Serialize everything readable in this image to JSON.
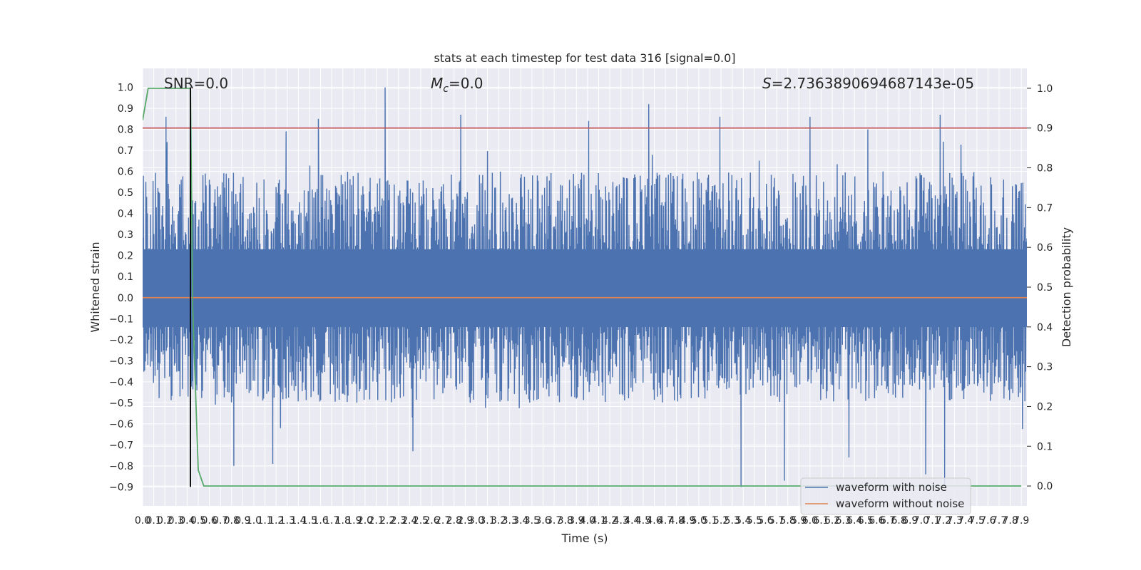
{
  "chart_data": {
    "type": "line",
    "title": "stats at each timestep for test data 316 [signal=0.0]",
    "xlabel": "Time (s)",
    "ylabel_left": "Whitened strain",
    "ylabel_right": "Detection probability",
    "xlim": [
      0.0,
      7.95
    ],
    "ylim_left": [
      -0.99,
      1.09
    ],
    "ylim_right": [
      -0.05,
      1.05
    ],
    "x_ticks": [
      "0.0",
      "0.1",
      "0.2",
      "0.3",
      "0.4",
      "0.5",
      "0.6",
      "0.7",
      "0.8",
      "0.9",
      "1.0",
      "1.1",
      "1.2",
      "1.3",
      "1.4",
      "1.5",
      "1.6",
      "1.7",
      "1.8",
      "1.9",
      "2.0",
      "2.1",
      "2.2",
      "2.3",
      "2.4",
      "2.5",
      "2.6",
      "2.7",
      "2.8",
      "2.9",
      "3.0",
      "3.1",
      "3.2",
      "3.3",
      "3.4",
      "3.5",
      "3.6",
      "3.7",
      "3.8",
      "3.9",
      "4.0",
      "4.1",
      "4.2",
      "4.3",
      "4.4",
      "4.5",
      "4.6",
      "4.7",
      "4.8",
      "4.9",
      "5.0",
      "5.1",
      "5.2",
      "5.3",
      "5.4",
      "5.5",
      "5.6",
      "5.7",
      "5.8",
      "5.9",
      "6.0",
      "6.1",
      "6.2",
      "6.3",
      "6.4",
      "6.5",
      "6.6",
      "6.7",
      "6.8",
      "6.9",
      "7.0",
      "7.1",
      "7.2",
      "7.3",
      "7.4",
      "7.5",
      "7.6",
      "7.7",
      "7.8",
      "7.9"
    ],
    "y_ticks_left": [
      "−0.9",
      "−0.8",
      "−0.7",
      "−0.6",
      "−0.5",
      "−0.4",
      "−0.3",
      "−0.2",
      "−0.1",
      "0.0",
      "0.1",
      "0.2",
      "0.3",
      "0.4",
      "0.5",
      "0.6",
      "0.7",
      "0.8",
      "0.9",
      "1.0"
    ],
    "y_ticks_right": [
      "0.0",
      "0.1",
      "0.2",
      "0.3",
      "0.4",
      "0.5",
      "0.6",
      "0.7",
      "0.8",
      "0.9",
      "1.0"
    ],
    "annotations": {
      "snr": "SNR=0.0",
      "mc_symbol": "M",
      "mc_sub": "c",
      "mc_value": "=0.0",
      "s_symbol": "S",
      "s_value": "=2.7363890694687143e-05"
    },
    "series": [
      {
        "name": "waveform with noise",
        "axis": "left",
        "color": "#4c72b0",
        "kind": "noise",
        "approx_range": [
          -0.9,
          1.0
        ],
        "typical_band": [
          -0.5,
          0.6
        ],
        "peaks": [
          {
            "x": 0.21,
            "y": 0.86
          },
          {
            "x": 0.22,
            "y": 0.74
          },
          {
            "x": 0.43,
            "y": 0.86
          },
          {
            "x": 1.29,
            "y": 0.79
          },
          {
            "x": 1.58,
            "y": 0.85
          },
          {
            "x": 2.18,
            "y": 1.0
          },
          {
            "x": 2.86,
            "y": 0.87
          },
          {
            "x": 4.01,
            "y": 0.84
          },
          {
            "x": 4.55,
            "y": 0.92
          },
          {
            "x": 5.19,
            "y": 0.86
          },
          {
            "x": 6.0,
            "y": 0.86
          },
          {
            "x": 6.52,
            "y": 0.8
          },
          {
            "x": 7.17,
            "y": 0.87
          }
        ],
        "troughs": [
          {
            "x": 0.82,
            "y": -0.8
          },
          {
            "x": 1.17,
            "y": -0.79
          },
          {
            "x": 2.43,
            "y": -0.73
          },
          {
            "x": 5.38,
            "y": -0.9
          },
          {
            "x": 5.77,
            "y": -0.87
          },
          {
            "x": 6.35,
            "y": -0.76
          },
          {
            "x": 7.04,
            "y": -0.84
          },
          {
            "x": 7.21,
            "y": -0.89
          }
        ]
      },
      {
        "name": "waveform without noise",
        "axis": "left",
        "color": "#dd8452",
        "x": [
          0.0,
          7.95
        ],
        "y": [
          0.0,
          0.0
        ]
      },
      {
        "name": "",
        "axis": "right",
        "color": "#55a868",
        "x": [
          0.0,
          0.05,
          0.43,
          0.45,
          0.5,
          0.55,
          7.9
        ],
        "y": [
          0.92,
          1.0,
          1.0,
          0.45,
          0.04,
          0.0,
          0.0
        ]
      }
    ],
    "threshold_line": {
      "axis": "right",
      "y": 0.9,
      "color": "#c44e52"
    },
    "vertical_marker": {
      "x": 0.43,
      "y_range": [
        -0.9,
        1.0
      ],
      "color": "#000000"
    },
    "legend": {
      "location": "lower right",
      "entries": [
        "waveform with noise",
        "waveform without noise"
      ]
    },
    "grid": true,
    "background": "#eaeaf2"
  }
}
